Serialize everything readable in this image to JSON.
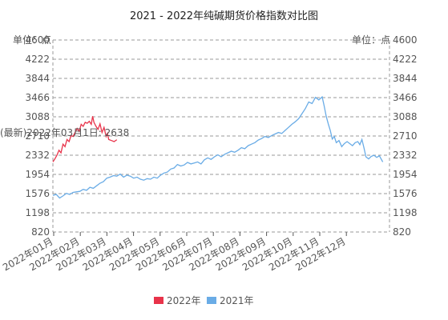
{
  "chart_data": {
    "type": "line",
    "title": "2021 - 2022年纯碱期货价格指数对比图",
    "y_unit_left": "单位：点",
    "y_unit_right": "单位：点",
    "ylim": [
      820,
      4600
    ],
    "y_ticks": [
      "4600",
      "4222",
      "3844",
      "3466",
      "3088",
      "2710",
      "2332",
      "1954",
      "1576",
      "1198",
      "820"
    ],
    "x_ticks": [
      "2022年01月",
      "2022年02月",
      "2022年03月",
      "2022年04月",
      "2022年05月",
      "2022年06月",
      "2022年07月",
      "2022年08月",
      "2022年09月",
      "2022年10月",
      "2022年11月",
      "2022年12月"
    ],
    "xlim": [
      0,
      1
    ],
    "grid": true,
    "legend_position": "bottom",
    "annotation": "(最新)2022年03月1日: 2638",
    "series": [
      {
        "name": "2022年",
        "color": "#e8334a",
        "points": [
          [
            0.0,
            2200
          ],
          [
            0.006,
            2260
          ],
          [
            0.012,
            2330
          ],
          [
            0.018,
            2430
          ],
          [
            0.024,
            2380
          ],
          [
            0.03,
            2550
          ],
          [
            0.036,
            2500
          ],
          [
            0.042,
            2640
          ],
          [
            0.048,
            2600
          ],
          [
            0.054,
            2720
          ],
          [
            0.06,
            2700
          ],
          [
            0.066,
            2780
          ],
          [
            0.072,
            2860
          ],
          [
            0.078,
            2800
          ],
          [
            0.084,
            2940
          ],
          [
            0.09,
            2900
          ],
          [
            0.096,
            2980
          ],
          [
            0.102,
            2960
          ],
          [
            0.108,
            3000
          ],
          [
            0.114,
            2940
          ],
          [
            0.118,
            3100
          ],
          [
            0.122,
            2980
          ],
          [
            0.128,
            2900
          ],
          [
            0.134,
            2840
          ],
          [
            0.14,
            2950
          ],
          [
            0.146,
            2780
          ],
          [
            0.152,
            2880
          ],
          [
            0.158,
            2700
          ],
          [
            0.162,
            2760
          ],
          [
            0.166,
            2640
          ],
          [
            0.174,
            2620
          ],
          [
            0.182,
            2600
          ],
          [
            0.19,
            2638
          ]
        ]
      },
      {
        "name": "2021年",
        "color": "#6aace6",
        "points": [
          [
            0.0,
            1540
          ],
          [
            0.01,
            1560
          ],
          [
            0.02,
            1490
          ],
          [
            0.03,
            1530
          ],
          [
            0.04,
            1580
          ],
          [
            0.05,
            1560
          ],
          [
            0.06,
            1600
          ],
          [
            0.07,
            1610
          ],
          [
            0.08,
            1620
          ],
          [
            0.09,
            1660
          ],
          [
            0.1,
            1640
          ],
          [
            0.11,
            1700
          ],
          [
            0.12,
            1680
          ],
          [
            0.13,
            1730
          ],
          [
            0.14,
            1780
          ],
          [
            0.15,
            1810
          ],
          [
            0.16,
            1880
          ],
          [
            0.17,
            1900
          ],
          [
            0.18,
            1930
          ],
          [
            0.19,
            1920
          ],
          [
            0.2,
            1960
          ],
          [
            0.21,
            1900
          ],
          [
            0.22,
            1940
          ],
          [
            0.23,
            1920
          ],
          [
            0.24,
            1880
          ],
          [
            0.25,
            1900
          ],
          [
            0.26,
            1860
          ],
          [
            0.27,
            1840
          ],
          [
            0.28,
            1870
          ],
          [
            0.29,
            1860
          ],
          [
            0.3,
            1900
          ],
          [
            0.31,
            1880
          ],
          [
            0.32,
            1940
          ],
          [
            0.33,
            1980
          ],
          [
            0.34,
            2000
          ],
          [
            0.35,
            2060
          ],
          [
            0.36,
            2080
          ],
          [
            0.37,
            2150
          ],
          [
            0.38,
            2120
          ],
          [
            0.39,
            2140
          ],
          [
            0.4,
            2190
          ],
          [
            0.41,
            2160
          ],
          [
            0.42,
            2180
          ],
          [
            0.43,
            2200
          ],
          [
            0.44,
            2160
          ],
          [
            0.45,
            2240
          ],
          [
            0.46,
            2280
          ],
          [
            0.47,
            2250
          ],
          [
            0.48,
            2300
          ],
          [
            0.49,
            2340
          ],
          [
            0.5,
            2300
          ],
          [
            0.51,
            2350
          ],
          [
            0.52,
            2380
          ],
          [
            0.53,
            2410
          ],
          [
            0.54,
            2390
          ],
          [
            0.55,
            2430
          ],
          [
            0.56,
            2480
          ],
          [
            0.57,
            2460
          ],
          [
            0.58,
            2520
          ],
          [
            0.59,
            2550
          ],
          [
            0.6,
            2580
          ],
          [
            0.61,
            2630
          ],
          [
            0.62,
            2660
          ],
          [
            0.63,
            2700
          ],
          [
            0.64,
            2680
          ],
          [
            0.65,
            2720
          ],
          [
            0.66,
            2750
          ],
          [
            0.67,
            2780
          ],
          [
            0.68,
            2760
          ],
          [
            0.69,
            2820
          ],
          [
            0.7,
            2880
          ],
          [
            0.71,
            2940
          ],
          [
            0.72,
            2990
          ],
          [
            0.73,
            3050
          ],
          [
            0.74,
            3150
          ],
          [
            0.75,
            3250
          ],
          [
            0.76,
            3380
          ],
          [
            0.77,
            3350
          ],
          [
            0.78,
            3470
          ],
          [
            0.79,
            3420
          ],
          [
            0.8,
            3480
          ],
          [
            0.806,
            3300
          ],
          [
            0.812,
            3100
          ],
          [
            0.818,
            2950
          ],
          [
            0.824,
            2820
          ],
          [
            0.83,
            2650
          ],
          [
            0.836,
            2700
          ],
          [
            0.842,
            2580
          ],
          [
            0.85,
            2620
          ],
          [
            0.858,
            2500
          ],
          [
            0.866,
            2560
          ],
          [
            0.874,
            2600
          ],
          [
            0.882,
            2560
          ],
          [
            0.89,
            2520
          ],
          [
            0.898,
            2580
          ],
          [
            0.906,
            2600
          ],
          [
            0.912,
            2540
          ],
          [
            0.918,
            2640
          ],
          [
            0.924,
            2480
          ],
          [
            0.93,
            2300
          ],
          [
            0.938,
            2260
          ],
          [
            0.946,
            2310
          ],
          [
            0.954,
            2330
          ],
          [
            0.962,
            2290
          ],
          [
            0.97,
            2320
          ],
          [
            0.98,
            2200
          ]
        ]
      }
    ]
  }
}
